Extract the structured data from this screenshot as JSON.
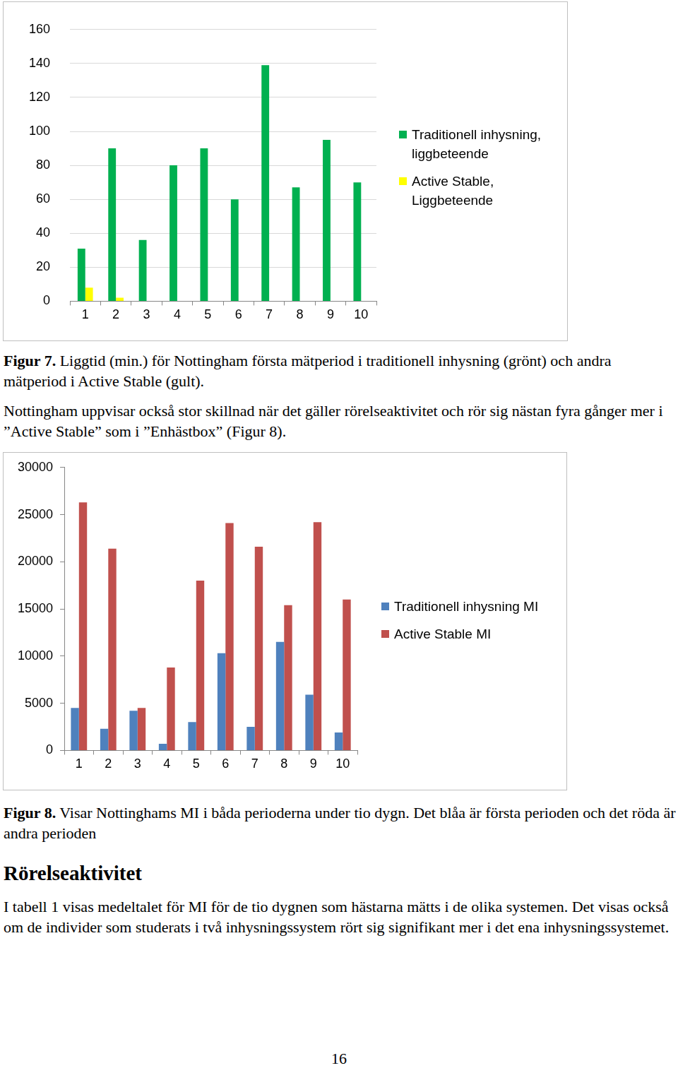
{
  "chart_data": [
    {
      "type": "bar",
      "categories": [
        "1",
        "2",
        "3",
        "4",
        "5",
        "6",
        "7",
        "8",
        "9",
        "10"
      ],
      "series": [
        {
          "name": "Traditionell inhysning, liggbeteende",
          "color": "#00b050",
          "values": [
            31,
            90,
            36,
            80,
            90,
            60,
            139,
            67,
            95,
            70
          ]
        },
        {
          "name": "Active Stable, Liggbeteende",
          "color": "#ffff00",
          "values": [
            8,
            2,
            0,
            0,
            0,
            0,
            0,
            0,
            0,
            0
          ]
        }
      ],
      "ylim": [
        0,
        160
      ],
      "yticks": [
        0,
        20,
        40,
        60,
        80,
        100,
        120,
        140,
        160
      ],
      "grid": true,
      "legend": "right"
    },
    {
      "type": "bar",
      "categories": [
        "1",
        "2",
        "3",
        "4",
        "5",
        "6",
        "7",
        "8",
        "9",
        "10"
      ],
      "series": [
        {
          "name": "Traditionell inhysning MI",
          "color": "#4f81bd",
          "values": [
            4500,
            2300,
            4200,
            700,
            3000,
            10300,
            2500,
            11500,
            5900,
            1900
          ]
        },
        {
          "name": "Active Stable MI",
          "color": "#c0504d",
          "values": [
            26300,
            21400,
            4500,
            8800,
            18000,
            24100,
            21600,
            15400,
            24200,
            16000
          ]
        }
      ],
      "ylim": [
        0,
        30000
      ],
      "yticks": [
        0,
        5000,
        10000,
        15000,
        20000,
        25000,
        30000
      ],
      "grid": false,
      "legend": "right"
    }
  ],
  "document": {
    "caption_1": {
      "label": "Figur 7.",
      "text": "Liggtid (min.) för Nottingham första mätperiod i traditionell inhysning (grönt) och andra mätperiod i Active Stable (gult)."
    },
    "paragraph_1": "Nottingham uppvisar också stor skillnad när det gäller rörelseaktivitet och rör sig nästan fyra gånger mer i ”Active Stable” som i ”Enhästbox” (Figur 8).",
    "caption_2": {
      "label": "Figur 8.",
      "text": "Visar Nottinghams MI i båda perioderna under tio dygn. Det blåa är första perioden och det röda är andra perioden"
    },
    "heading": "Rörelseaktivitet",
    "paragraph_2": "I tabell 1 visas medeltalet för MI för de tio dygnen som hästarna mätts i de olika systemen. Det visas också om de individer som studerats i två inhysningssystem rört sig signifikant mer i det ena inhysningssystemet.",
    "page_number": 16
  }
}
